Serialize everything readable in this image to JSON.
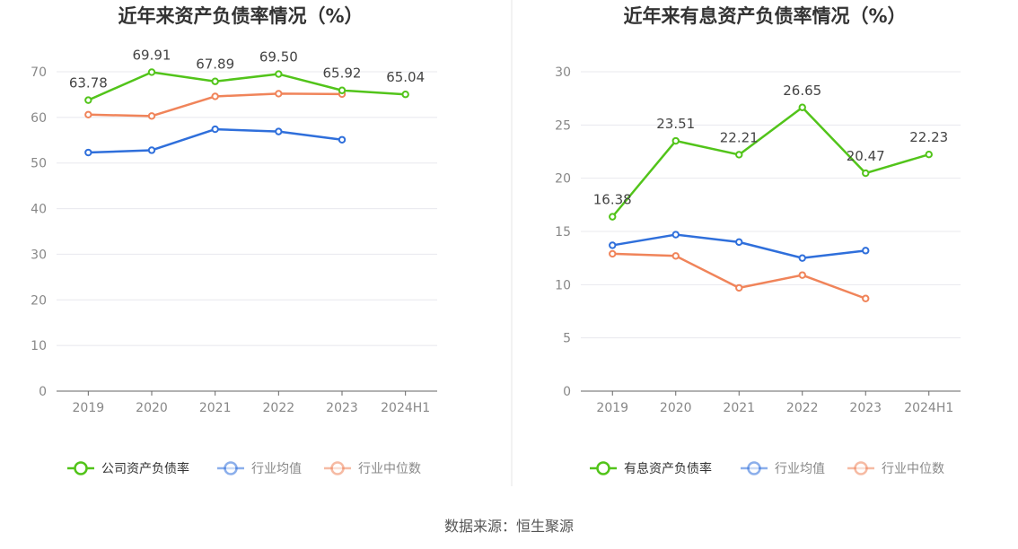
{
  "source": "数据来源：恒生聚源",
  "chart_data": [
    {
      "type": "line",
      "title": "近年来资产负债率情况（%）",
      "categories": [
        "2019",
        "2020",
        "2021",
        "2022",
        "2023",
        "2024H1"
      ],
      "ylim": [
        0,
        70
      ],
      "yticks": [
        0,
        10,
        20,
        30,
        40,
        50,
        60,
        70
      ],
      "grid": true,
      "legend_position": "bottom",
      "series": [
        {
          "name": "公司资产负债率",
          "color": "#52c41a",
          "values": [
            63.78,
            69.91,
            67.89,
            69.5,
            65.92,
            65.04
          ],
          "labels": true
        },
        {
          "name": "行业均值",
          "color": "#2f6fdb",
          "values": [
            52.3,
            52.8,
            57.4,
            56.9,
            55.1,
            null
          ],
          "labels": false
        },
        {
          "name": "行业中位数",
          "color": "#f0845a",
          "values": [
            60.6,
            60.3,
            64.6,
            65.2,
            65.1,
            null
          ],
          "labels": false
        }
      ]
    },
    {
      "type": "line",
      "title": "近年来有息资产负债率情况（%）",
      "categories": [
        "2019",
        "2020",
        "2021",
        "2022",
        "2023",
        "2024H1"
      ],
      "ylim": [
        0,
        30
      ],
      "yticks": [
        0,
        5,
        10,
        15,
        20,
        25,
        30
      ],
      "grid": true,
      "legend_position": "bottom",
      "series": [
        {
          "name": "有息资产负债率",
          "color": "#52c41a",
          "values": [
            16.38,
            23.51,
            22.21,
            26.65,
            20.47,
            22.23
          ],
          "labels": true
        },
        {
          "name": "行业均值",
          "color": "#2f6fdb",
          "values": [
            13.7,
            14.7,
            14.0,
            12.5,
            13.2,
            null
          ],
          "labels": false
        },
        {
          "name": "行业中位数",
          "color": "#f0845a",
          "values": [
            12.9,
            12.7,
            9.7,
            10.9,
            8.7,
            null
          ],
          "labels": false
        }
      ]
    }
  ]
}
